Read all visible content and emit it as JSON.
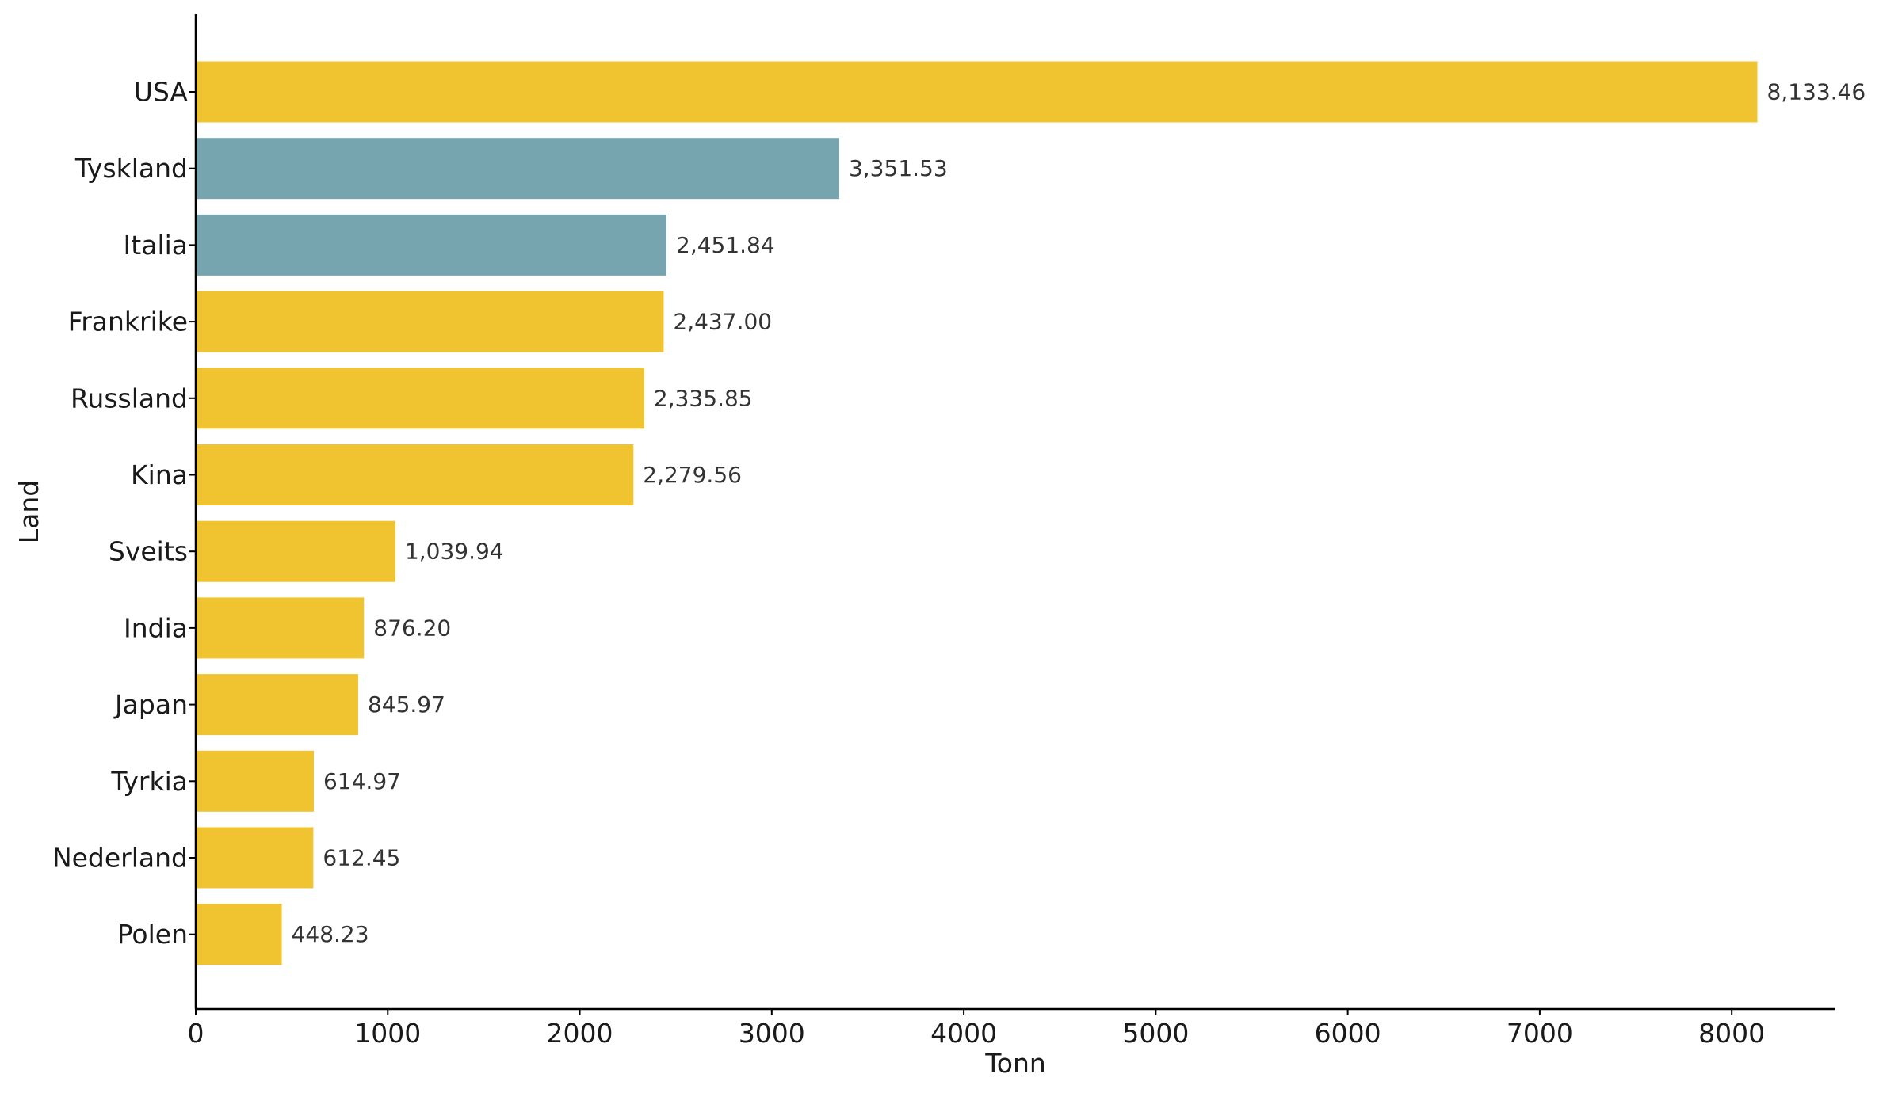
{
  "chart_data": {
    "type": "bar",
    "orientation": "horizontal",
    "title": "",
    "xlabel": "Tonn",
    "ylabel": "Land",
    "xlim": [
      0,
      8540
    ],
    "xticks": [
      0,
      1000,
      2000,
      3000,
      4000,
      5000,
      6000,
      7000,
      8000
    ],
    "grid": false,
    "categories": [
      "USA",
      "Tyskland",
      "Italia",
      "Frankrike",
      "Russland",
      "Kina",
      "Sveits",
      "India",
      "Japan",
      "Tyrkia",
      "Nederland",
      "Polen"
    ],
    "values": [
      8133.46,
      3351.53,
      2451.84,
      2437.0,
      2335.85,
      2279.56,
      1039.94,
      876.2,
      845.97,
      614.97,
      612.45,
      448.23
    ],
    "value_labels": [
      "8,133.46",
      "3,351.53",
      "2,451.84",
      "2,437.00",
      "2,335.85",
      "2,279.56",
      "1,039.94",
      "876.20",
      "845.97",
      "614.97",
      "612.45",
      "448.23"
    ],
    "highlighted": [
      "Tyskland",
      "Italia"
    ],
    "colors": {
      "default": "#f0c330",
      "highlight": "#76a5af",
      "axis": "#000000"
    }
  }
}
